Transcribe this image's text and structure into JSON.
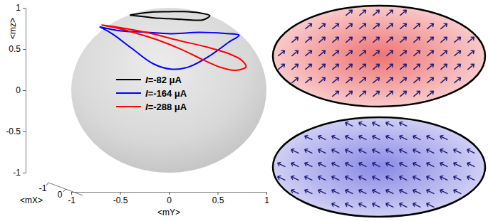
{
  "chart_data": {
    "type": "line3d",
    "x_label": "<mX>",
    "y_label": "<mY>",
    "z_label": "<mz>",
    "xlim": [
      -1,
      1
    ],
    "ylim": [
      -1,
      1
    ],
    "zlim": [
      -1,
      1
    ],
    "xticks": [
      -1,
      0
    ],
    "yticks": [
      -1,
      -0.5,
      0,
      0.5,
      1
    ],
    "zticks": [
      -1,
      -0.5,
      0,
      0.5,
      1
    ],
    "series": [
      {
        "name": "I=-82 μA",
        "color": "#000000",
        "x": [
          0.03,
          -0.3,
          -0.36,
          -0.39,
          -0.35,
          -0.25,
          0.0,
          0.3,
          0.42,
          0.42,
          0.38,
          0.25,
          0.03
        ],
        "y": [
          -0.4,
          -0.3,
          -0.15,
          0.0,
          0.15,
          0.3,
          0.42,
          0.35,
          0.15,
          0.0,
          -0.15,
          -0.3,
          -0.4
        ],
        "z": [
          0.915,
          0.905,
          0.92,
          0.92,
          0.925,
          0.92,
          0.905,
          0.88,
          0.895,
          0.905,
          0.91,
          0.92,
          0.915
        ]
      },
      {
        "name": "I=-164 μA",
        "color": "#0000ff",
        "x": [
          0.0,
          -0.35,
          -0.55,
          -0.65,
          -0.6,
          -0.45,
          -0.1,
          0.35,
          0.6,
          0.8,
          0.85,
          0.8,
          0.6,
          0.3,
          0.0
        ],
        "y": [
          -0.71,
          -0.49,
          -0.27,
          0.02,
          0.31,
          0.57,
          0.72,
          0.61,
          0.42,
          0.2,
          0.02,
          -0.16,
          -0.38,
          -0.58,
          -0.71
        ],
        "z": [
          0.77,
          0.69,
          0.66,
          0.63,
          0.65,
          0.65,
          0.66,
          0.61,
          0.47,
          0.35,
          0.33,
          0.39,
          0.56,
          0.71,
          0.77
        ]
      },
      {
        "name": "I=-288 μA",
        "color": "#ff0000",
        "x": [
          0.0,
          -0.35,
          -0.5,
          -0.55,
          -0.5,
          -0.3,
          0.0,
          0.2,
          0.45,
          0.6,
          0.7,
          0.75,
          0.7,
          0.55,
          0.3,
          0.0
        ],
        "y": [
          -0.69,
          -0.45,
          -0.2,
          0.09,
          0.39,
          0.61,
          0.75,
          0.79,
          0.68,
          0.53,
          0.35,
          0.13,
          -0.09,
          -0.31,
          -0.53,
          -0.69
        ],
        "z": [
          0.79,
          0.72,
          0.65,
          0.56,
          0.48,
          0.42,
          0.36,
          0.3,
          0.28,
          0.33,
          0.43,
          0.56,
          0.66,
          0.73,
          0.78,
          0.79
        ]
      }
    ]
  }
}
